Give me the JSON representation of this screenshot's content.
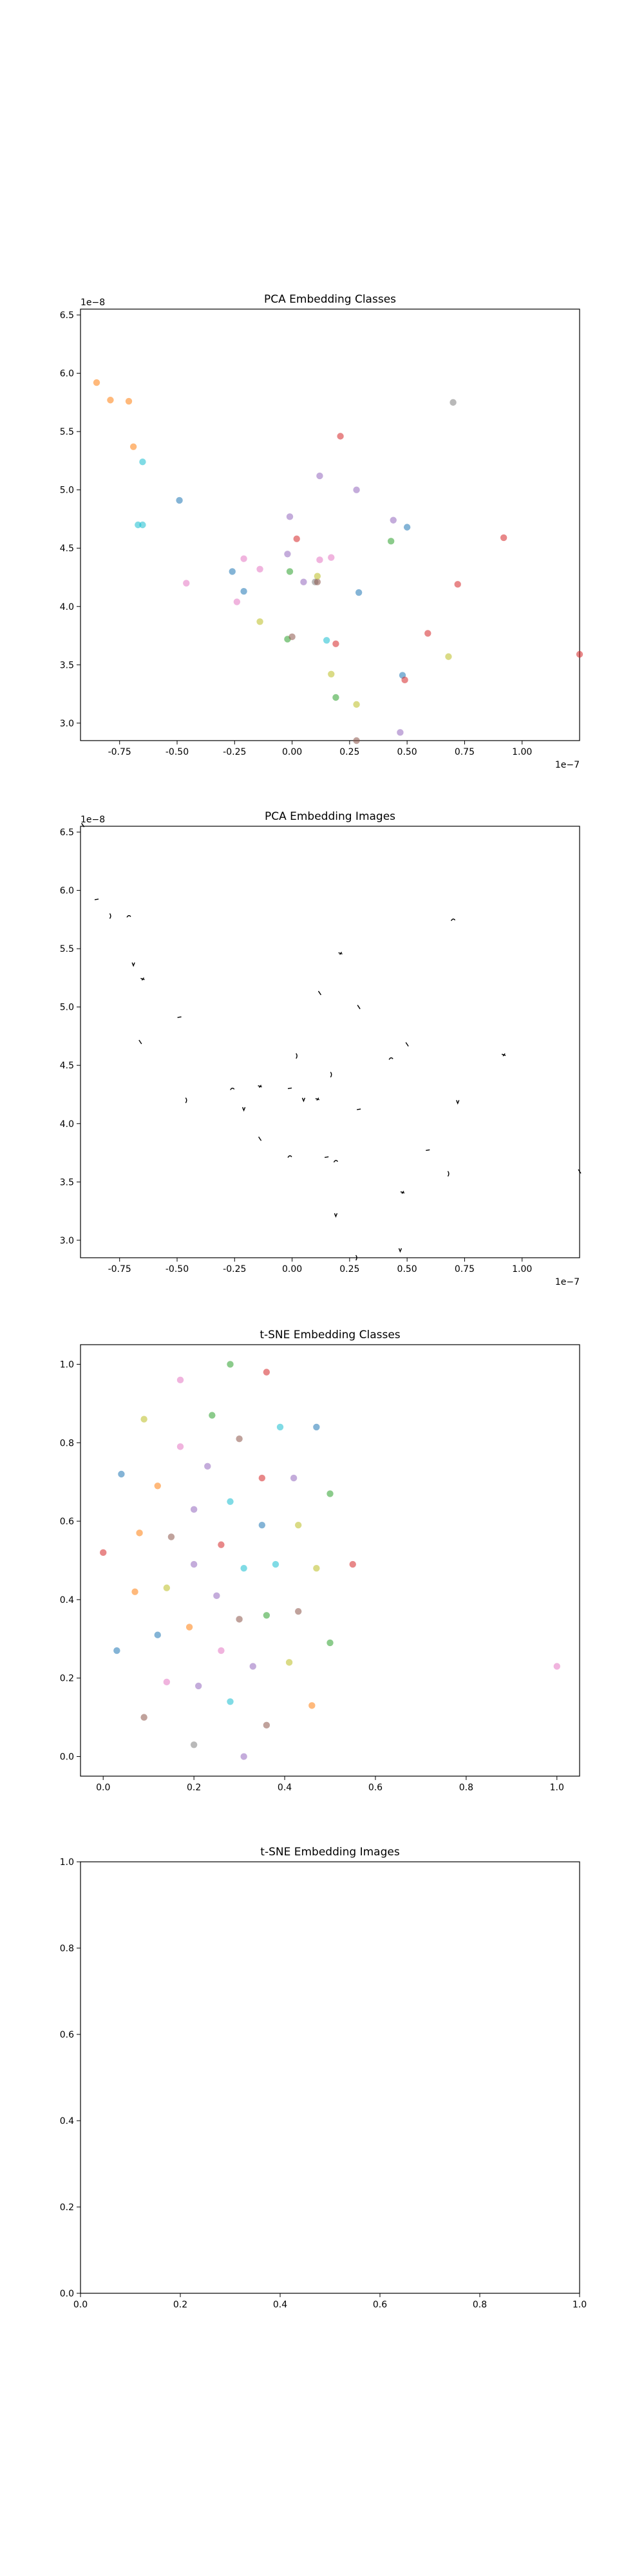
{
  "chart_data": [
    {
      "type": "scatter",
      "title": "PCA Embedding Classes",
      "xlim": [
        -0.92,
        1.25
      ],
      "ylim": [
        2.85,
        6.55
      ],
      "xticks": [
        "-0.75",
        "-0.50",
        "-0.25",
        "0.00",
        "0.25",
        "0.50",
        "0.75",
        "1.00"
      ],
      "yticks": [
        "3.0",
        "3.5",
        "4.0",
        "4.5",
        "5.0",
        "5.5",
        "6.0",
        "6.5"
      ],
      "x_offset_label": "1e−7",
      "y_offset_label": "1e−8",
      "points": [
        {
          "x": -0.85,
          "y": 5.92,
          "color": "#ff7f0e"
        },
        {
          "x": -0.79,
          "y": 5.77,
          "color": "#ff7f0e"
        },
        {
          "x": -0.71,
          "y": 5.76,
          "color": "#ff7f0e"
        },
        {
          "x": -0.69,
          "y": 5.37,
          "color": "#ff7f0e"
        },
        {
          "x": -0.65,
          "y": 5.24,
          "color": "#17becf"
        },
        {
          "x": -0.67,
          "y": 4.7,
          "color": "#17becf"
        },
        {
          "x": -0.65,
          "y": 4.7,
          "color": "#17becf"
        },
        {
          "x": -0.49,
          "y": 4.91,
          "color": "#1f77b4"
        },
        {
          "x": -0.46,
          "y": 4.2,
          "color": "#e377c2"
        },
        {
          "x": -0.26,
          "y": 4.3,
          "color": "#1f77b4"
        },
        {
          "x": -0.24,
          "y": 4.04,
          "color": "#e377c2"
        },
        {
          "x": -0.21,
          "y": 4.41,
          "color": "#e377c2"
        },
        {
          "x": -0.21,
          "y": 4.13,
          "color": "#1f77b4"
        },
        {
          "x": -0.14,
          "y": 4.32,
          "color": "#e377c2"
        },
        {
          "x": -0.14,
          "y": 3.87,
          "color": "#bcbd22"
        },
        {
          "x": -0.02,
          "y": 4.45,
          "color": "#9467bd"
        },
        {
          "x": -0.01,
          "y": 4.3,
          "color": "#2ca02c"
        },
        {
          "x": -0.01,
          "y": 4.77,
          "color": "#9467bd"
        },
        {
          "x": 0.02,
          "y": 4.58,
          "color": "#d62728"
        },
        {
          "x": -0.02,
          "y": 3.72,
          "color": "#2ca02c"
        },
        {
          "x": 0.0,
          "y": 3.74,
          "color": "#8c564b"
        },
        {
          "x": 0.05,
          "y": 4.21,
          "color": "#9467bd"
        },
        {
          "x": 0.1,
          "y": 4.21,
          "color": "#7f7f7f"
        },
        {
          "x": 0.11,
          "y": 4.21,
          "color": "#8c564b"
        },
        {
          "x": 0.11,
          "y": 4.26,
          "color": "#bcbd22"
        },
        {
          "x": 0.12,
          "y": 4.4,
          "color": "#e377c2"
        },
        {
          "x": 0.12,
          "y": 5.12,
          "color": "#9467bd"
        },
        {
          "x": 0.15,
          "y": 3.71,
          "color": "#17becf"
        },
        {
          "x": 0.17,
          "y": 4.42,
          "color": "#e377c2"
        },
        {
          "x": 0.17,
          "y": 3.42,
          "color": "#bcbd22"
        },
        {
          "x": 0.19,
          "y": 3.68,
          "color": "#d62728"
        },
        {
          "x": 0.19,
          "y": 3.22,
          "color": "#2ca02c"
        },
        {
          "x": 0.21,
          "y": 5.46,
          "color": "#d62728"
        },
        {
          "x": 0.28,
          "y": 5.0,
          "color": "#9467bd"
        },
        {
          "x": 0.29,
          "y": 4.12,
          "color": "#1f77b4"
        },
        {
          "x": 0.28,
          "y": 3.16,
          "color": "#bcbd22"
        },
        {
          "x": 0.28,
          "y": 2.85,
          "color": "#8c564b"
        },
        {
          "x": 0.43,
          "y": 4.56,
          "color": "#2ca02c"
        },
        {
          "x": 0.44,
          "y": 4.74,
          "color": "#9467bd"
        },
        {
          "x": 0.47,
          "y": 2.92,
          "color": "#9467bd"
        },
        {
          "x": 0.48,
          "y": 3.41,
          "color": "#1f77b4"
        },
        {
          "x": 0.49,
          "y": 3.37,
          "color": "#d62728"
        },
        {
          "x": 0.5,
          "y": 4.68,
          "color": "#1f77b4"
        },
        {
          "x": 0.59,
          "y": 3.77,
          "color": "#d62728"
        },
        {
          "x": 0.68,
          "y": 3.57,
          "color": "#bcbd22"
        },
        {
          "x": 0.7,
          "y": 5.75,
          "color": "#7f7f7f"
        },
        {
          "x": 0.72,
          "y": 4.19,
          "color": "#d62728"
        },
        {
          "x": 0.92,
          "y": 4.59,
          "color": "#d62728"
        },
        {
          "x": 1.25,
          "y": 3.59,
          "color": "#d62728"
        }
      ]
    },
    {
      "type": "scatter",
      "title": "PCA Embedding Images",
      "xlim": [
        -0.92,
        1.25
      ],
      "ylim": [
        2.85,
        6.55
      ],
      "xticks": [
        "-0.75",
        "-0.50",
        "-0.25",
        "0.00",
        "0.25",
        "0.50",
        "0.75",
        "1.00"
      ],
      "yticks": [
        "3.0",
        "3.5",
        "4.0",
        "4.5",
        "5.0",
        "5.5",
        "6.0",
        "6.5"
      ],
      "x_offset_label": "1e−7",
      "y_offset_label": "1e−8",
      "points": [
        {
          "x": -0.91,
          "y": 6.56
        },
        {
          "x": -0.85,
          "y": 5.92
        },
        {
          "x": -0.79,
          "y": 5.78
        },
        {
          "x": -0.71,
          "y": 5.78
        },
        {
          "x": -0.69,
          "y": 5.37
        },
        {
          "x": -0.65,
          "y": 5.24
        },
        {
          "x": -0.66,
          "y": 4.7
        },
        {
          "x": -0.49,
          "y": 4.91
        },
        {
          "x": -0.46,
          "y": 4.2
        },
        {
          "x": -0.26,
          "y": 4.3
        },
        {
          "x": -0.21,
          "y": 4.13
        },
        {
          "x": -0.14,
          "y": 4.32
        },
        {
          "x": -0.14,
          "y": 3.87
        },
        {
          "x": -0.01,
          "y": 4.3
        },
        {
          "x": 0.02,
          "y": 4.58
        },
        {
          "x": -0.01,
          "y": 3.72
        },
        {
          "x": 0.05,
          "y": 4.21
        },
        {
          "x": 0.11,
          "y": 4.21
        },
        {
          "x": 0.12,
          "y": 5.12
        },
        {
          "x": 0.15,
          "y": 3.71
        },
        {
          "x": 0.17,
          "y": 4.42
        },
        {
          "x": 0.19,
          "y": 3.68
        },
        {
          "x": 0.19,
          "y": 3.22
        },
        {
          "x": 0.21,
          "y": 5.46
        },
        {
          "x": 0.29,
          "y": 5.0
        },
        {
          "x": 0.29,
          "y": 4.12
        },
        {
          "x": 0.28,
          "y": 2.85
        },
        {
          "x": 0.43,
          "y": 4.56
        },
        {
          "x": 0.47,
          "y": 2.92
        },
        {
          "x": 0.48,
          "y": 3.41
        },
        {
          "x": 0.5,
          "y": 4.68
        },
        {
          "x": 0.59,
          "y": 3.77
        },
        {
          "x": 0.68,
          "y": 3.57
        },
        {
          "x": 0.7,
          "y": 5.75
        },
        {
          "x": 0.72,
          "y": 4.19
        },
        {
          "x": 0.92,
          "y": 4.59
        },
        {
          "x": 1.25,
          "y": 3.59
        }
      ]
    },
    {
      "type": "scatter",
      "title": "t-SNE Embedding Classes",
      "xlim": [
        -0.05,
        1.05
      ],
      "ylim": [
        -0.05,
        1.05
      ],
      "xticks": [
        "0.0",
        "0.2",
        "0.4",
        "0.6",
        "0.8",
        "1.0"
      ],
      "yticks": [
        "0.0",
        "0.2",
        "0.4",
        "0.6",
        "0.8",
        "1.0"
      ],
      "points": [
        {
          "x": 0.28,
          "y": 1.0,
          "color": "#2ca02c"
        },
        {
          "x": 0.36,
          "y": 0.98,
          "color": "#d62728"
        },
        {
          "x": 0.17,
          "y": 0.96,
          "color": "#e377c2"
        },
        {
          "x": 0.24,
          "y": 0.87,
          "color": "#2ca02c"
        },
        {
          "x": 0.09,
          "y": 0.86,
          "color": "#bcbd22"
        },
        {
          "x": 0.39,
          "y": 0.84,
          "color": "#17becf"
        },
        {
          "x": 0.47,
          "y": 0.84,
          "color": "#1f77b4"
        },
        {
          "x": 0.3,
          "y": 0.81,
          "color": "#8c564b"
        },
        {
          "x": 0.17,
          "y": 0.79,
          "color": "#e377c2"
        },
        {
          "x": 0.23,
          "y": 0.74,
          "color": "#9467bd"
        },
        {
          "x": 0.04,
          "y": 0.72,
          "color": "#1f77b4"
        },
        {
          "x": 0.35,
          "y": 0.71,
          "color": "#d62728"
        },
        {
          "x": 0.42,
          "y": 0.71,
          "color": "#9467bd"
        },
        {
          "x": 0.12,
          "y": 0.69,
          "color": "#ff7f0e"
        },
        {
          "x": 0.5,
          "y": 0.67,
          "color": "#2ca02c"
        },
        {
          "x": 0.28,
          "y": 0.65,
          "color": "#17becf"
        },
        {
          "x": 0.2,
          "y": 0.63,
          "color": "#9467bd"
        },
        {
          "x": 0.35,
          "y": 0.59,
          "color": "#1f77b4"
        },
        {
          "x": 0.43,
          "y": 0.59,
          "color": "#bcbd22"
        },
        {
          "x": 0.08,
          "y": 0.57,
          "color": "#ff7f0e"
        },
        {
          "x": 0.15,
          "y": 0.56,
          "color": "#8c564b"
        },
        {
          "x": 0.26,
          "y": 0.54,
          "color": "#d62728"
        },
        {
          "x": 0.0,
          "y": 0.52,
          "color": "#d62728"
        },
        {
          "x": 0.2,
          "y": 0.49,
          "color": "#9467bd"
        },
        {
          "x": 0.38,
          "y": 0.49,
          "color": "#17becf"
        },
        {
          "x": 0.31,
          "y": 0.48,
          "color": "#17becf"
        },
        {
          "x": 0.47,
          "y": 0.48,
          "color": "#bcbd22"
        },
        {
          "x": 0.55,
          "y": 0.49,
          "color": "#d62728"
        },
        {
          "x": 0.14,
          "y": 0.43,
          "color": "#bcbd22"
        },
        {
          "x": 0.07,
          "y": 0.42,
          "color": "#ff7f0e"
        },
        {
          "x": 0.25,
          "y": 0.41,
          "color": "#9467bd"
        },
        {
          "x": 0.43,
          "y": 0.37,
          "color": "#8c564b"
        },
        {
          "x": 0.36,
          "y": 0.36,
          "color": "#2ca02c"
        },
        {
          "x": 0.3,
          "y": 0.35,
          "color": "#8c564b"
        },
        {
          "x": 0.19,
          "y": 0.33,
          "color": "#ff7f0e"
        },
        {
          "x": 0.12,
          "y": 0.31,
          "color": "#1f77b4"
        },
        {
          "x": 0.5,
          "y": 0.29,
          "color": "#2ca02c"
        },
        {
          "x": 0.03,
          "y": 0.27,
          "color": "#1f77b4"
        },
        {
          "x": 0.26,
          "y": 0.27,
          "color": "#e377c2"
        },
        {
          "x": 0.41,
          "y": 0.24,
          "color": "#bcbd22"
        },
        {
          "x": 0.33,
          "y": 0.23,
          "color": "#9467bd"
        },
        {
          "x": 1.0,
          "y": 0.23,
          "color": "#e377c2"
        },
        {
          "x": 0.14,
          "y": 0.19,
          "color": "#e377c2"
        },
        {
          "x": 0.21,
          "y": 0.18,
          "color": "#9467bd"
        },
        {
          "x": 0.28,
          "y": 0.14,
          "color": "#17becf"
        },
        {
          "x": 0.46,
          "y": 0.13,
          "color": "#ff7f0e"
        },
        {
          "x": 0.09,
          "y": 0.1,
          "color": "#8c564b"
        },
        {
          "x": 0.36,
          "y": 0.08,
          "color": "#8c564b"
        },
        {
          "x": 0.2,
          "y": 0.03,
          "color": "#7f7f7f"
        },
        {
          "x": 0.31,
          "y": 0.0,
          "color": "#9467bd"
        }
      ]
    },
    {
      "type": "scatter",
      "title": "t-SNE Embedding Images",
      "xlim": [
        0,
        1
      ],
      "ylim": [
        0,
        1
      ],
      "xticks": [
        "0.0",
        "0.2",
        "0.4",
        "0.6",
        "0.8",
        "1.0"
      ],
      "yticks": [
        "0.0",
        "0.2",
        "0.4",
        "0.6",
        "0.8",
        "1.0"
      ],
      "points": []
    }
  ]
}
